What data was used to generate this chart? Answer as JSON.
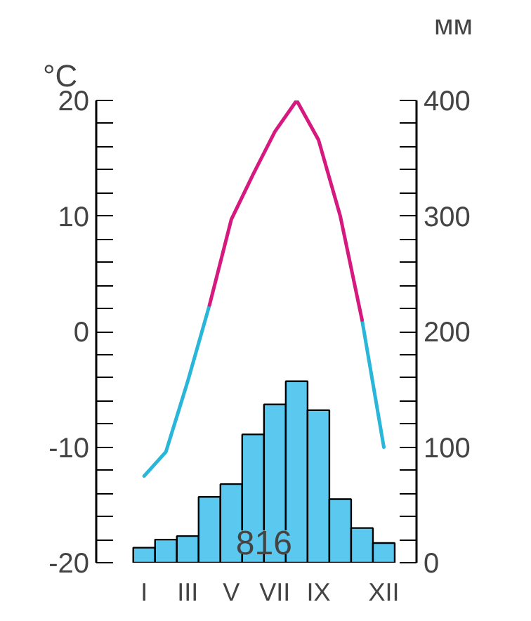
{
  "chart_data": {
    "type": "bar",
    "categories": [
      "I",
      null,
      "III",
      null,
      "V",
      null,
      "VII",
      null,
      "IX",
      null,
      null,
      "XII"
    ],
    "series": [
      {
        "axis": "y2",
        "color": "#5bc8f0",
        "values": [
          13,
          20,
          23,
          57,
          68,
          111,
          137,
          157,
          132,
          55,
          30,
          17
        ]
      },
      {
        "type": "line",
        "color": "#29b6d8",
        "values": [
          -12.5,
          -10.4,
          -4.3,
          2.3,
          null,
          null,
          null,
          null,
          null,
          null,
          1,
          -10
        ]
      },
      {
        "type": "line",
        "color": "#d6197f",
        "values": [
          null,
          null,
          null,
          2.3,
          9.7,
          13.6,
          17.3,
          20,
          16.6,
          10,
          1,
          null
        ]
      }
    ],
    "ylabel": "°C",
    "y2label": "мм",
    "ylim": [
      -20,
      20
    ],
    "yticks": [
      -20,
      -10,
      0,
      10,
      20
    ],
    "y2lim": [
      0,
      400
    ],
    "y2ticks": [
      0,
      100,
      200,
      300,
      400
    ],
    "annotations": [
      "816"
    ],
    "grid": false
  }
}
